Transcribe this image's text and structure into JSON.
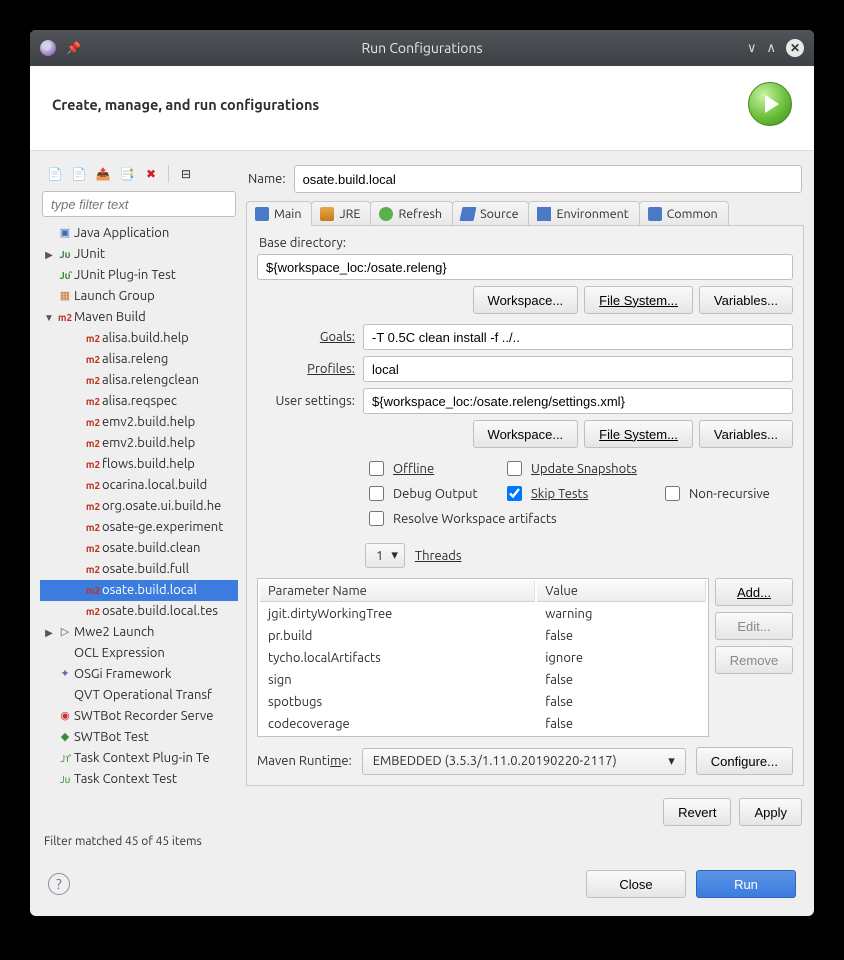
{
  "window": {
    "title": "Run Configurations",
    "header_title": "Create, manage, and run configurations"
  },
  "left": {
    "filter_placeholder": "type filter text",
    "filter_status": "Filter matched 45 of 45 items",
    "tree": [
      {
        "level": 1,
        "twisty": "",
        "icon": "java",
        "label": "Java Application"
      },
      {
        "level": 1,
        "twisty": "▶",
        "icon": "junit",
        "label": "JUnit"
      },
      {
        "level": 1,
        "twisty": "",
        "icon": "junitp",
        "label": "JUnit Plug-in Test"
      },
      {
        "level": 1,
        "twisty": "",
        "icon": "launch",
        "label": "Launch Group"
      },
      {
        "level": 1,
        "twisty": "▼",
        "icon": "m2",
        "label": "Maven Build"
      },
      {
        "level": 2,
        "twisty": "",
        "icon": "m2",
        "label": "alisa.build.help"
      },
      {
        "level": 2,
        "twisty": "",
        "icon": "m2",
        "label": "alisa.releng"
      },
      {
        "level": 2,
        "twisty": "",
        "icon": "m2",
        "label": "alisa.relengclean"
      },
      {
        "level": 2,
        "twisty": "",
        "icon": "m2",
        "label": "alisa.reqspec"
      },
      {
        "level": 2,
        "twisty": "",
        "icon": "m2",
        "label": "emv2.build.help"
      },
      {
        "level": 2,
        "twisty": "",
        "icon": "m2",
        "label": "emv2.build.help"
      },
      {
        "level": 2,
        "twisty": "",
        "icon": "m2",
        "label": "flows.build.help"
      },
      {
        "level": 2,
        "twisty": "",
        "icon": "m2",
        "label": "ocarina.local.build"
      },
      {
        "level": 2,
        "twisty": "",
        "icon": "m2",
        "label": "org.osate.ui.build.he"
      },
      {
        "level": 2,
        "twisty": "",
        "icon": "m2",
        "label": "osate-ge.experiment"
      },
      {
        "level": 2,
        "twisty": "",
        "icon": "m2",
        "label": "osate.build.clean"
      },
      {
        "level": 2,
        "twisty": "",
        "icon": "m2",
        "label": "osate.build.full"
      },
      {
        "level": 2,
        "twisty": "",
        "icon": "m2",
        "label": "osate.build.local",
        "selected": true
      },
      {
        "level": 2,
        "twisty": "",
        "icon": "m2",
        "label": "osate.build.local.tes"
      },
      {
        "level": 1,
        "twisty": "▶",
        "icon": "mwe",
        "label": "Mwe2 Launch"
      },
      {
        "level": 1,
        "twisty": "",
        "icon": "ocl",
        "label": "OCL Expression"
      },
      {
        "level": 1,
        "twisty": "",
        "icon": "osgi",
        "label": "OSGi Framework"
      },
      {
        "level": 1,
        "twisty": "",
        "icon": "qvt",
        "label": "QVT Operational Transf"
      },
      {
        "level": 1,
        "twisty": "",
        "icon": "swtrec",
        "label": "SWTBot Recorder Serve"
      },
      {
        "level": 1,
        "twisty": "",
        "icon": "swt",
        "label": "SWTBot Test"
      },
      {
        "level": 1,
        "twisty": "",
        "icon": "taskp",
        "label": "Task Context Plug-in Te"
      },
      {
        "level": 1,
        "twisty": "",
        "icon": "task",
        "label": "Task Context Test"
      }
    ]
  },
  "form": {
    "name_label": "Name:",
    "name_value": "osate.build.local",
    "tabs": [
      "Main",
      "JRE",
      "Refresh",
      "Source",
      "Environment",
      "Common"
    ],
    "base_dir_label": "Base directory:",
    "base_dir_value": "${workspace_loc:/osate.releng}",
    "btn_workspace": "Workspace...",
    "btn_filesystem": "File System...",
    "btn_variables": "Variables...",
    "goals_label": "Goals:",
    "goals_value": "-T 0.5C clean install -f ../..",
    "profiles_label": "Profiles:",
    "profiles_value": "local",
    "usersettings_label": "User settings:",
    "usersettings_value": "${workspace_loc:/osate.releng/settings.xml}",
    "chk_offline": "Offline",
    "chk_update": "Update Snapshots",
    "chk_debug": "Debug Output",
    "chk_skip": "Skip Tests",
    "chk_nonrec": "Non-recursive",
    "chk_resolve": "Resolve Workspace artifacts",
    "threads_value": "1",
    "threads_label": "Threads",
    "params_col_name": "Parameter Name",
    "params_col_value": "Value",
    "params": [
      {
        "name": "jgit.dirtyWorkingTree",
        "value": "warning"
      },
      {
        "name": "pr.build",
        "value": "false"
      },
      {
        "name": "tycho.localArtifacts",
        "value": "ignore"
      },
      {
        "name": "sign",
        "value": "false"
      },
      {
        "name": "spotbugs",
        "value": "false"
      },
      {
        "name": "codecoverage",
        "value": "false"
      }
    ],
    "btn_add": "Add...",
    "btn_edit": "Edit...",
    "btn_remove": "Remove",
    "runtime_label": "Maven Runtime:",
    "runtime_value": "EMBEDDED (3.5.3/1.11.0.20190220-2117)",
    "btn_configure": "Configure...",
    "btn_revert": "Revert",
    "btn_apply": "Apply"
  },
  "footer": {
    "close": "Close",
    "run": "Run"
  }
}
